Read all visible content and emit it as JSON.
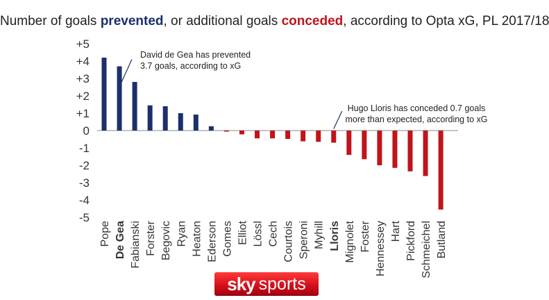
{
  "title": {
    "prefix": "Number of goals ",
    "prevented": "prevented",
    "middle": ", or additional goals ",
    "conceded": "conceded",
    "suffix": ", according to Opta xG, PL 2017/18"
  },
  "logo": {
    "sky": "sky",
    "sports": "sports"
  },
  "colors": {
    "prevented": "#1b2f6b",
    "conceded": "#c0141b",
    "axis": "#888888",
    "text": "#333333"
  },
  "chart_data": {
    "type": "bar",
    "categories": [
      "Pope",
      "De Gea",
      "Fabianski",
      "Forster",
      "Begovic",
      "Ryan",
      "Heaton",
      "Ederson",
      "Gomes",
      "Elliot",
      "Lössl",
      "Cech",
      "Courtois",
      "Speroni",
      "Myhill",
      "Lloris",
      "Mignolet",
      "Foster",
      "Hennessey",
      "Hart",
      "Pickford",
      "Schmeichel",
      "Butland"
    ],
    "values": [
      4.2,
      3.7,
      2.8,
      1.45,
      1.4,
      1.0,
      0.92,
      0.25,
      -0.05,
      -0.22,
      -0.45,
      -0.45,
      -0.48,
      -0.62,
      -0.65,
      -0.7,
      -1.4,
      -1.65,
      -2.0,
      -2.15,
      -2.35,
      -2.62,
      -4.55
    ],
    "bold_categories": [
      "De Gea",
      "Lloris"
    ],
    "yticks": [
      "+5",
      "+4",
      "+3",
      "+2",
      "+1",
      "0",
      "-1",
      "-2",
      "-3",
      "-4",
      "-5"
    ],
    "ytick_values": [
      5,
      4,
      3,
      2,
      1,
      0,
      -1,
      -2,
      -3,
      -4,
      -5
    ],
    "ylim": [
      -5,
      5
    ],
    "xlabel": "",
    "ylabel": "",
    "annotations": [
      {
        "category": "De Gea",
        "lines": [
          "David de Gea has prevented",
          "3.7 goals, according to xG"
        ]
      },
      {
        "category": "Lloris",
        "lines": [
          "Hugo Lloris has conceded 0.7 goals",
          "more than expected, according to xG"
        ]
      }
    ]
  }
}
